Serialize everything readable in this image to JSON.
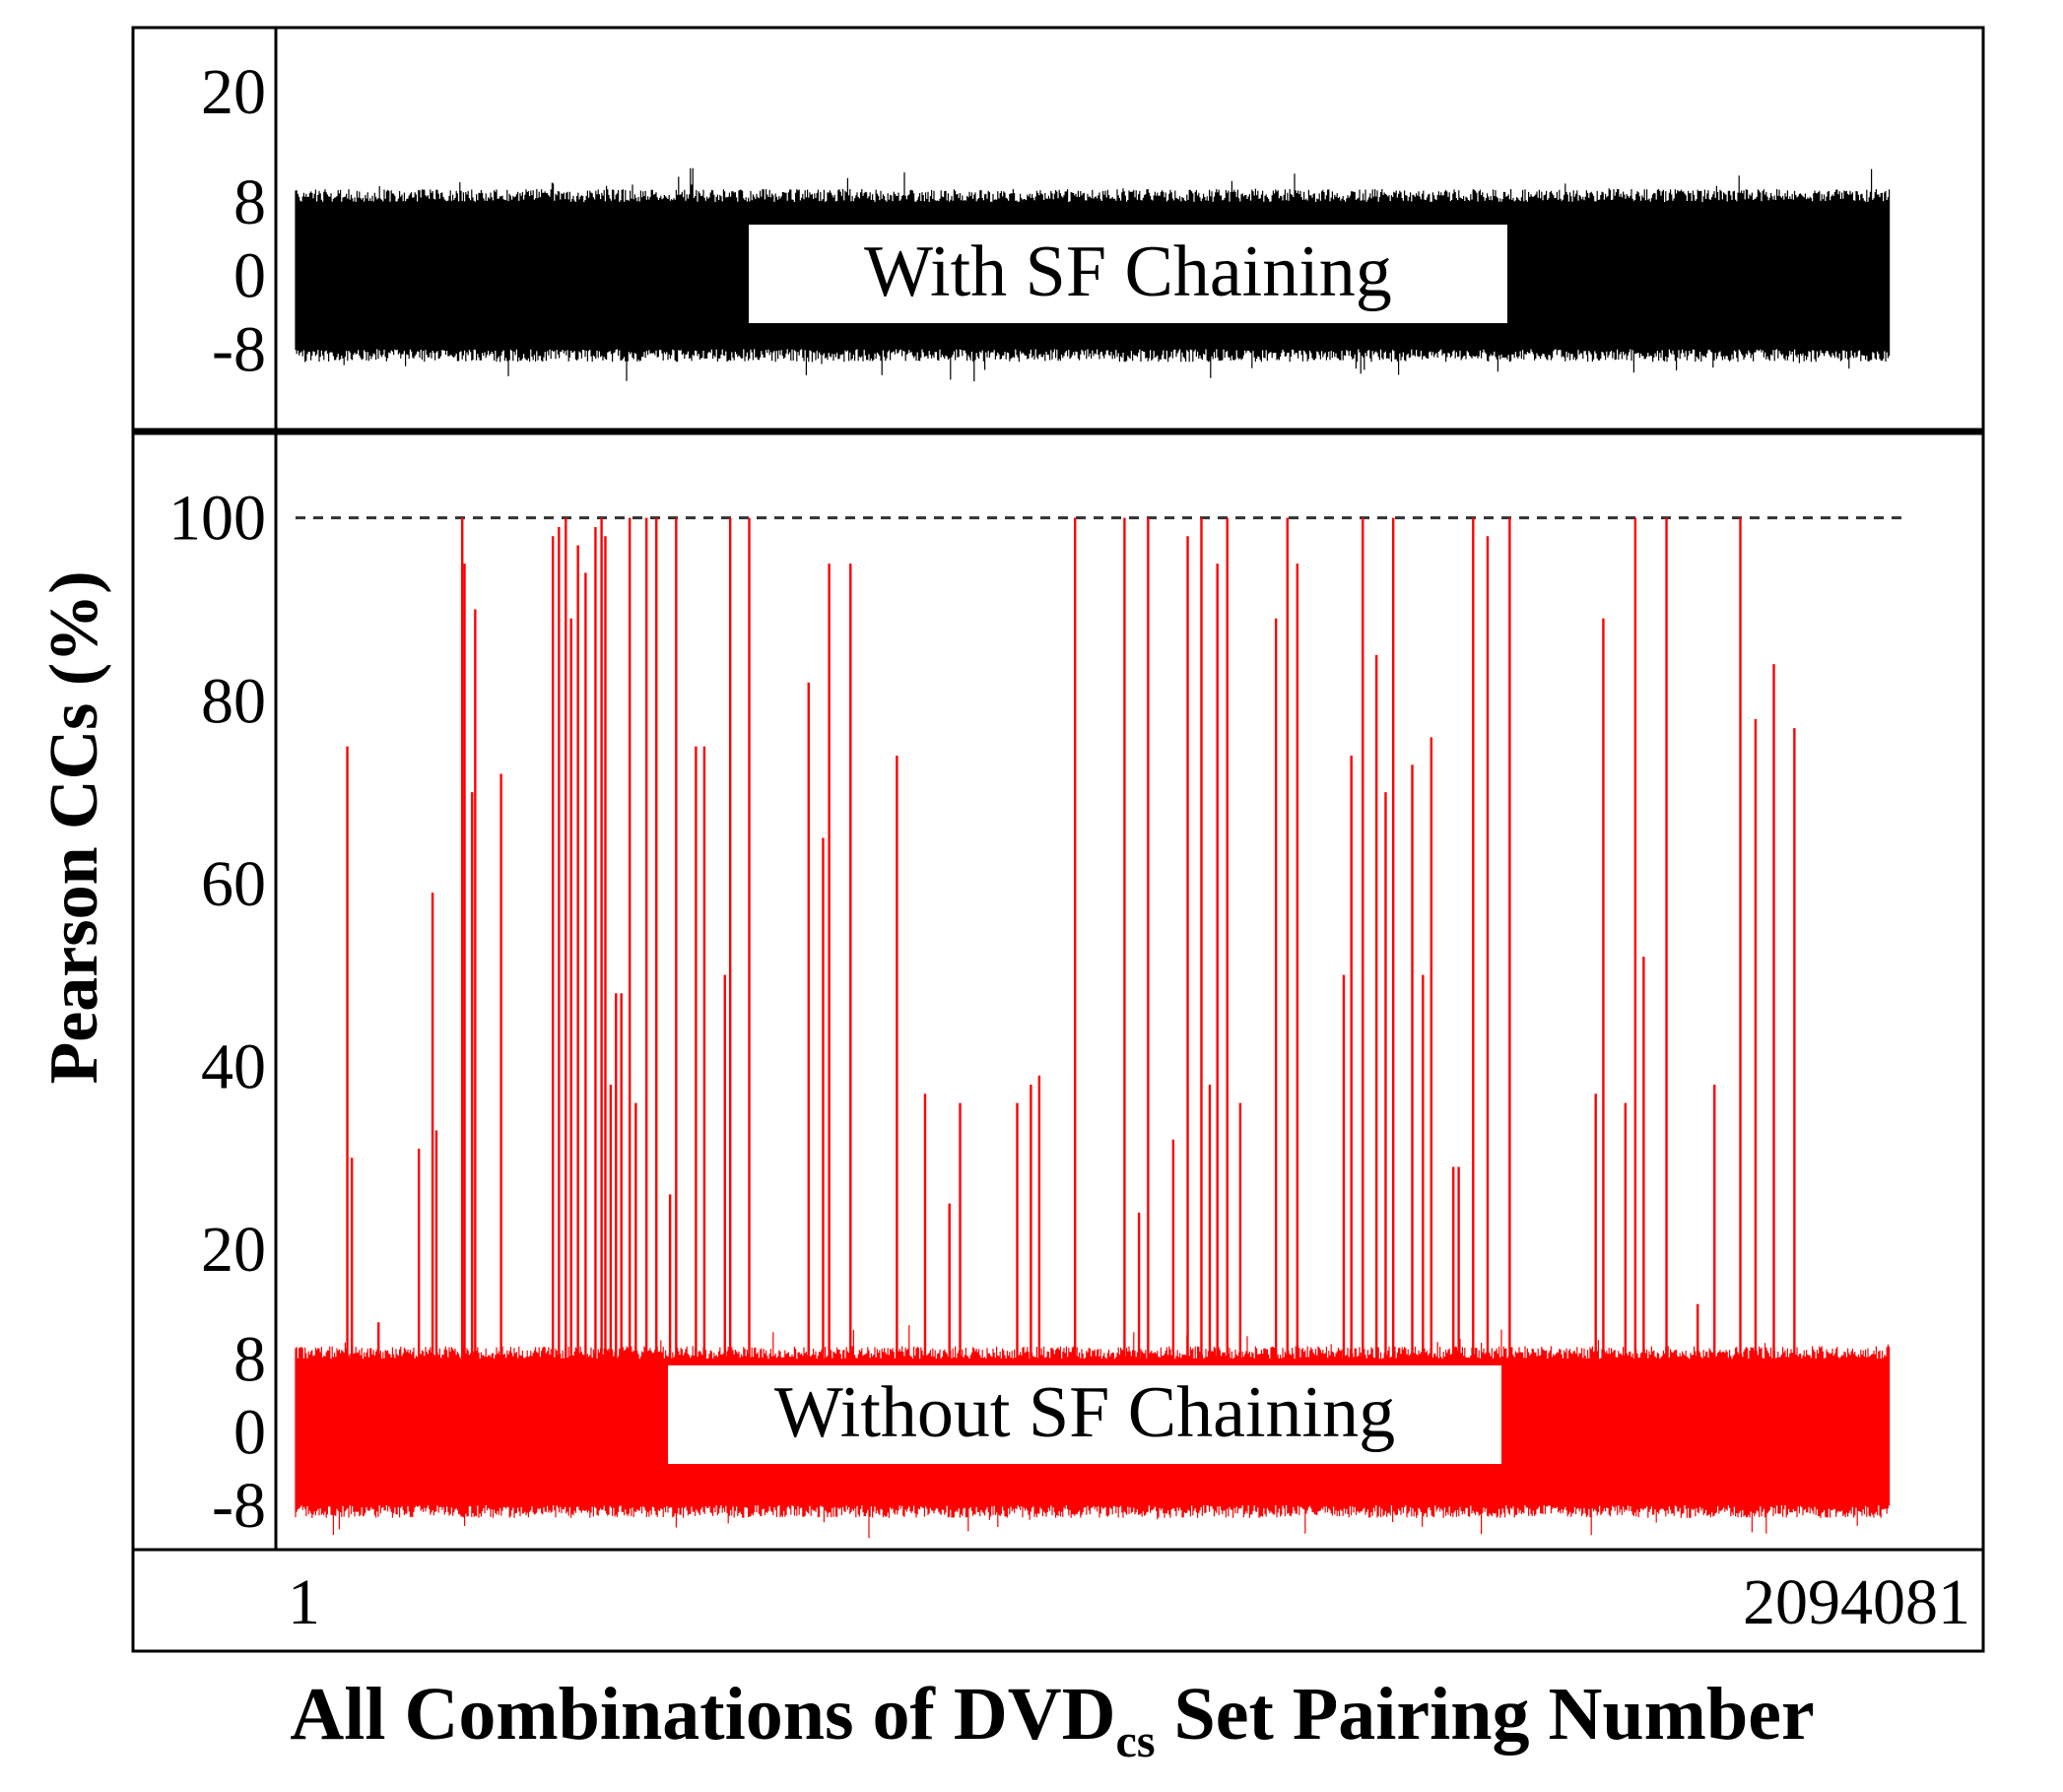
{
  "chart_data": [
    {
      "type": "line",
      "panel": "top",
      "annotation": "With SF Chaining",
      "color": "#000000",
      "yticks": [
        20,
        8,
        0,
        -8
      ],
      "ylim": [
        -10,
        23
      ],
      "xlim": [
        1,
        2094081
      ],
      "noise_band": [
        -8,
        8
      ],
      "spikes": []
    },
    {
      "type": "line",
      "panel": "bottom",
      "annotation": "Without SF Chaining",
      "color": "#ff0000",
      "yticks": [
        100,
        80,
        60,
        40,
        20,
        8,
        0,
        -8
      ],
      "ylim": [
        -12,
        106
      ],
      "xlim": [
        1,
        2094081
      ],
      "noise_band": [
        -8,
        8
      ],
      "reference_line": {
        "y": 100,
        "style": "dashed"
      },
      "spikes": [
        {
          "x": 68000,
          "y": 75
        },
        {
          "x": 74000,
          "y": 30
        },
        {
          "x": 109000,
          "y": 12
        },
        {
          "x": 162000,
          "y": 31
        },
        {
          "x": 180000,
          "y": 59
        },
        {
          "x": 185000,
          "y": 33
        },
        {
          "x": 219000,
          "y": 100
        },
        {
          "x": 222000,
          "y": 95
        },
        {
          "x": 232000,
          "y": 70
        },
        {
          "x": 236000,
          "y": 90
        },
        {
          "x": 270000,
          "y": 72
        },
        {
          "x": 338000,
          "y": 98
        },
        {
          "x": 346000,
          "y": 99
        },
        {
          "x": 355000,
          "y": 100
        },
        {
          "x": 362000,
          "y": 89
        },
        {
          "x": 371000,
          "y": 97
        },
        {
          "x": 381000,
          "y": 94
        },
        {
          "x": 394000,
          "y": 99
        },
        {
          "x": 402000,
          "y": 100
        },
        {
          "x": 407000,
          "y": 98
        },
        {
          "x": 414000,
          "y": 38
        },
        {
          "x": 421000,
          "y": 48
        },
        {
          "x": 428000,
          "y": 48
        },
        {
          "x": 439000,
          "y": 100
        },
        {
          "x": 447000,
          "y": 36
        },
        {
          "x": 461000,
          "y": 100
        },
        {
          "x": 474000,
          "y": 100
        },
        {
          "x": 492000,
          "y": 26
        },
        {
          "x": 500000,
          "y": 100
        },
        {
          "x": 526000,
          "y": 75
        },
        {
          "x": 537000,
          "y": 75
        },
        {
          "x": 564000,
          "y": 50
        },
        {
          "x": 571000,
          "y": 100
        },
        {
          "x": 596000,
          "y": 100
        },
        {
          "x": 674000,
          "y": 82
        },
        {
          "x": 693000,
          "y": 65
        },
        {
          "x": 701000,
          "y": 95
        },
        {
          "x": 729000,
          "y": 95
        },
        {
          "x": 790000,
          "y": 74
        },
        {
          "x": 827000,
          "y": 37
        },
        {
          "x": 859000,
          "y": 25
        },
        {
          "x": 873000,
          "y": 36
        },
        {
          "x": 948000,
          "y": 36
        },
        {
          "x": 966000,
          "y": 38
        },
        {
          "x": 977000,
          "y": 39
        },
        {
          "x": 1024000,
          "y": 100
        },
        {
          "x": 1089000,
          "y": 100
        },
        {
          "x": 1108000,
          "y": 24
        },
        {
          "x": 1120000,
          "y": 100
        },
        {
          "x": 1153000,
          "y": 32
        },
        {
          "x": 1172000,
          "y": 98
        },
        {
          "x": 1190000,
          "y": 100
        },
        {
          "x": 1201000,
          "y": 38
        },
        {
          "x": 1211000,
          "y": 95
        },
        {
          "x": 1224000,
          "y": 100
        },
        {
          "x": 1241000,
          "y": 36
        },
        {
          "x": 1288000,
          "y": 89
        },
        {
          "x": 1303000,
          "y": 100
        },
        {
          "x": 1316000,
          "y": 95
        },
        {
          "x": 1377000,
          "y": 50
        },
        {
          "x": 1387000,
          "y": 74
        },
        {
          "x": 1402000,
          "y": 100
        },
        {
          "x": 1420000,
          "y": 85
        },
        {
          "x": 1432000,
          "y": 70
        },
        {
          "x": 1442000,
          "y": 100
        },
        {
          "x": 1467000,
          "y": 73
        },
        {
          "x": 1481000,
          "y": 50
        },
        {
          "x": 1492000,
          "y": 76
        },
        {
          "x": 1521000,
          "y": 29
        },
        {
          "x": 1528000,
          "y": 29
        },
        {
          "x": 1547000,
          "y": 100
        },
        {
          "x": 1566000,
          "y": 98
        },
        {
          "x": 1595000,
          "y": 100
        },
        {
          "x": 1708000,
          "y": 37
        },
        {
          "x": 1718000,
          "y": 89
        },
        {
          "x": 1747000,
          "y": 36
        },
        {
          "x": 1760000,
          "y": 100
        },
        {
          "x": 1771000,
          "y": 52
        },
        {
          "x": 1801000,
          "y": 100
        },
        {
          "x": 1842000,
          "y": 14
        },
        {
          "x": 1864000,
          "y": 38
        },
        {
          "x": 1898000,
          "y": 100
        },
        {
          "x": 1918000,
          "y": 78
        },
        {
          "x": 1942000,
          "y": 84
        },
        {
          "x": 1969000,
          "y": 77
        }
      ]
    }
  ],
  "shared": {
    "ylabel": "Pearson CCs (%)",
    "xlabel_main": "All Combinations of DVD",
    "xlabel_sub": "cs",
    "xlabel_tail": " Set Pairing Number",
    "xtick_start": "1",
    "xtick_end": "2094081"
  }
}
